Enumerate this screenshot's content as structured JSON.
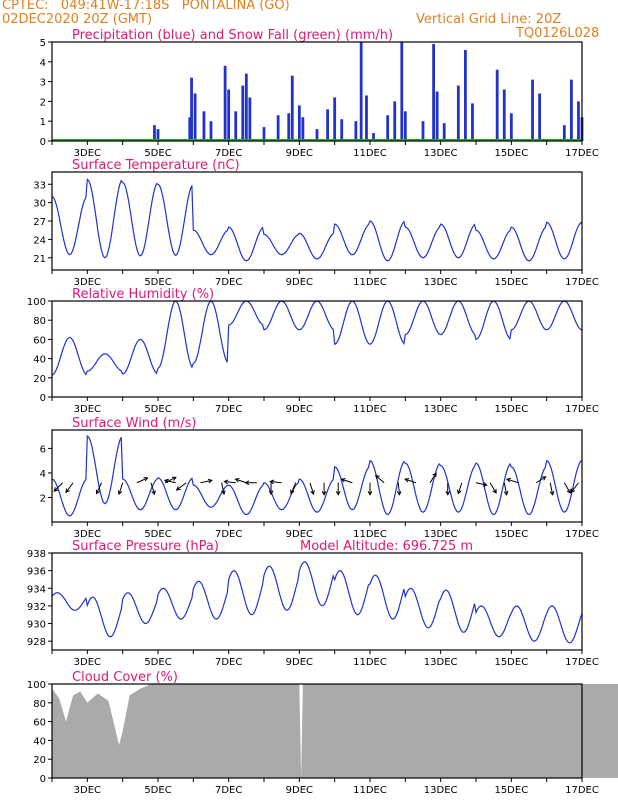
{
  "header": {
    "line1": "CPTEC:   049:41W-17:18S   PONTALINA (GO)",
    "line2": "02DEC2020 20Z (GMT)",
    "grid_note": "Vertical Grid Line: 20Z",
    "code": "TQ0126L028"
  },
  "colors": {
    "header": "#e08020",
    "title": "#e0187a",
    "line": "#2233cc",
    "snow": "#22aa22",
    "cloud": "#aaaaaa"
  },
  "date_labels": [
    "3DEC",
    "5DEC",
    "7DEC",
    "9DEC",
    "11DEC",
    "13DEC",
    "15DEC",
    "17DEC"
  ],
  "chart_data": [
    {
      "type": "bar",
      "title": "Precipitation (blue) and Snow Fall (green) (mm/h)",
      "x_range": [
        "02DEC2020 20Z",
        "17DEC2020 20Z"
      ],
      "ylim": [
        0,
        5
      ],
      "yticks": [
        0,
        1,
        2,
        3,
        4,
        5
      ],
      "series": [
        {
          "name": "Precipitation",
          "color": "#2233cc",
          "note": "hourly bursts (day, mm/h)",
          "values": [
            [
              4.9,
              0.8
            ],
            [
              5.0,
              0.6
            ],
            [
              5.9,
              1.2
            ],
            [
              5.95,
              3.2
            ],
            [
              6.05,
              2.4
            ],
            [
              6.3,
              1.5
            ],
            [
              6.5,
              1.0
            ],
            [
              6.9,
              3.8
            ],
            [
              7.0,
              2.6
            ],
            [
              7.2,
              1.5
            ],
            [
              7.4,
              2.8
            ],
            [
              7.5,
              3.4
            ],
            [
              7.6,
              2.2
            ],
            [
              8.0,
              0.7
            ],
            [
              8.4,
              1.3
            ],
            [
              8.7,
              1.4
            ],
            [
              8.8,
              3.3
            ],
            [
              9.0,
              1.8
            ],
            [
              9.1,
              1.2
            ],
            [
              9.5,
              0.6
            ],
            [
              9.8,
              1.6
            ],
            [
              10.0,
              2.2
            ],
            [
              10.2,
              1.1
            ],
            [
              10.6,
              1.0
            ],
            [
              10.75,
              5.0
            ],
            [
              10.9,
              2.3
            ],
            [
              11.1,
              0.4
            ],
            [
              11.5,
              1.3
            ],
            [
              11.7,
              2.0
            ],
            [
              11.9,
              5.0
            ],
            [
              12.0,
              1.5
            ],
            [
              12.5,
              1.0
            ],
            [
              12.8,
              4.9
            ],
            [
              12.9,
              2.5
            ],
            [
              13.1,
              0.9
            ],
            [
              13.5,
              2.8
            ],
            [
              13.7,
              4.6
            ],
            [
              13.9,
              1.9
            ],
            [
              14.6,
              3.6
            ],
            [
              14.8,
              2.6
            ],
            [
              15.0,
              1.4
            ],
            [
              15.6,
              3.1
            ],
            [
              15.8,
              2.4
            ],
            [
              16.5,
              0.8
            ],
            [
              16.7,
              3.1
            ],
            [
              16.9,
              2.0
            ],
            [
              17.0,
              1.2
            ]
          ]
        },
        {
          "name": "Snow Fall",
          "color": "#22aa22",
          "values": []
        }
      ]
    },
    {
      "type": "line",
      "title": "Surface Temperature (nC)",
      "ylim": [
        19,
        35
      ],
      "yticks": [
        21,
        24,
        27,
        30,
        33
      ],
      "daily_max": [
        31.0,
        33.8,
        33.3,
        33.0,
        25.5,
        26.0,
        24.8,
        25.0,
        26.5,
        27.0,
        26.0,
        26.5,
        25.5,
        26.0,
        26.8
      ],
      "daily_min": [
        21.5,
        21.0,
        21.3,
        21.4,
        21.5,
        20.5,
        21.5,
        20.8,
        21.5,
        20.5,
        21.0,
        21.0,
        20.8,
        20.5,
        20.8
      ]
    },
    {
      "type": "line",
      "title": "Relative Humidity (%)",
      "ylim": [
        0,
        100
      ],
      "yticks": [
        0,
        20,
        40,
        60,
        80,
        100
      ],
      "daily_max": [
        62,
        45,
        60,
        100,
        100,
        100,
        100,
        100,
        100,
        100,
        100,
        100,
        100,
        100,
        100
      ],
      "daily_min": [
        23,
        27,
        24,
        30,
        35,
        75,
        70,
        70,
        55,
        55,
        65,
        65,
        60,
        70,
        70
      ]
    },
    {
      "type": "line",
      "title": "Surface Wind (m/s)",
      "ylim": [
        0,
        7.5
      ],
      "yticks": [
        2,
        4,
        6
      ],
      "daily_max": [
        3.5,
        7.0,
        3.5,
        3.6,
        3.0,
        3.0,
        3.2,
        3.5,
        4.5,
        5.0,
        4.8,
        4.6,
        4.8,
        4.5,
        5.0
      ],
      "daily_min": [
        0.5,
        1.5,
        1.0,
        1.0,
        1.2,
        0.6,
        1.0,
        0.8,
        1.0,
        0.6,
        0.8,
        0.8,
        0.6,
        0.6,
        0.8
      ],
      "arrows": [
        [
          0.3,
          -0.7,
          -0.7
        ],
        [
          0.6,
          -0.6,
          -0.8
        ],
        [
          1.4,
          -0.4,
          -0.9
        ],
        [
          2.0,
          -0.3,
          -0.95
        ],
        [
          2.4,
          0.9,
          0.4
        ],
        [
          2.8,
          0.3,
          -0.95
        ],
        [
          3.2,
          0.9,
          0.45
        ],
        [
          3.5,
          -0.9,
          0.2
        ],
        [
          3.8,
          -0.8,
          -0.6
        ],
        [
          4.2,
          0.95,
          0.2
        ],
        [
          4.8,
          0.2,
          -0.95
        ],
        [
          5.2,
          -0.95,
          0.1
        ],
        [
          5.5,
          -0.9,
          0.3
        ],
        [
          5.8,
          -0.95,
          0.0
        ],
        [
          6.2,
          0.0,
          -0.95
        ],
        [
          6.5,
          -0.95,
          0.1
        ],
        [
          6.9,
          -0.4,
          -0.9
        ],
        [
          7.3,
          0.3,
          -0.95
        ],
        [
          7.7,
          0.0,
          -1.0
        ],
        [
          8.1,
          0.0,
          -1.0
        ],
        [
          8.5,
          -0.9,
          0.3
        ],
        [
          9.0,
          0.0,
          -1.0
        ],
        [
          9.4,
          -0.7,
          0.6
        ],
        [
          9.8,
          0.1,
          -1.0
        ],
        [
          10.3,
          -0.9,
          0.3
        ],
        [
          10.7,
          0.5,
          0.8
        ],
        [
          11.2,
          0.0,
          -1.0
        ],
        [
          11.6,
          -0.3,
          -0.9
        ],
        [
          12.0,
          0.9,
          -0.2
        ],
        [
          12.4,
          0.5,
          -0.85
        ],
        [
          12.8,
          0.2,
          -1.0
        ],
        [
          13.2,
          -0.95,
          0.3
        ],
        [
          13.7,
          0.8,
          0.5
        ],
        [
          14.1,
          0.2,
          -1.0
        ],
        [
          14.5,
          0.5,
          -0.85
        ],
        [
          14.9,
          -0.6,
          -0.8
        ]
      ]
    },
    {
      "type": "line",
      "title": "Surface Pressure (hPa)",
      "annotation": "Model Altitude: 696.725 m",
      "ylim": [
        927,
        938
      ],
      "yticks": [
        928,
        930,
        932,
        934,
        936,
        938
      ],
      "daily_max": [
        933.5,
        933.0,
        933.5,
        934.0,
        934.8,
        936.0,
        936.5,
        937.0,
        936.0,
        935.5,
        934.0,
        933.8,
        932.0,
        932.0,
        932.0
      ],
      "daily_min": [
        931.5,
        928.5,
        930.0,
        930.5,
        930.5,
        931.0,
        931.5,
        932.0,
        931.0,
        930.5,
        929.5,
        929.0,
        928.5,
        928.0,
        927.8
      ]
    },
    {
      "type": "area",
      "title": "Cloud Cover (%)",
      "ylim": [
        0,
        100
      ],
      "yticks": [
        0,
        20,
        40,
        60,
        80,
        100
      ],
      "series": [
        {
          "name": "Cloud Cover",
          "color": "#aaaaaa",
          "values": [
            [
              0.0,
              95
            ],
            [
              0.2,
              85
            ],
            [
              0.4,
              60
            ],
            [
              0.5,
              75
            ],
            [
              0.6,
              88
            ],
            [
              0.8,
              92
            ],
            [
              1.0,
              80
            ],
            [
              1.3,
              90
            ],
            [
              1.6,
              82
            ],
            [
              1.9,
              35
            ],
            [
              2.0,
              50
            ],
            [
              2.2,
              88
            ],
            [
              2.5,
              95
            ],
            [
              2.8,
              100
            ],
            [
              7.0,
              100
            ],
            [
              7.05,
              0
            ],
            [
              7.1,
              100
            ],
            [
              17.0,
              100
            ]
          ]
        }
      ]
    }
  ]
}
